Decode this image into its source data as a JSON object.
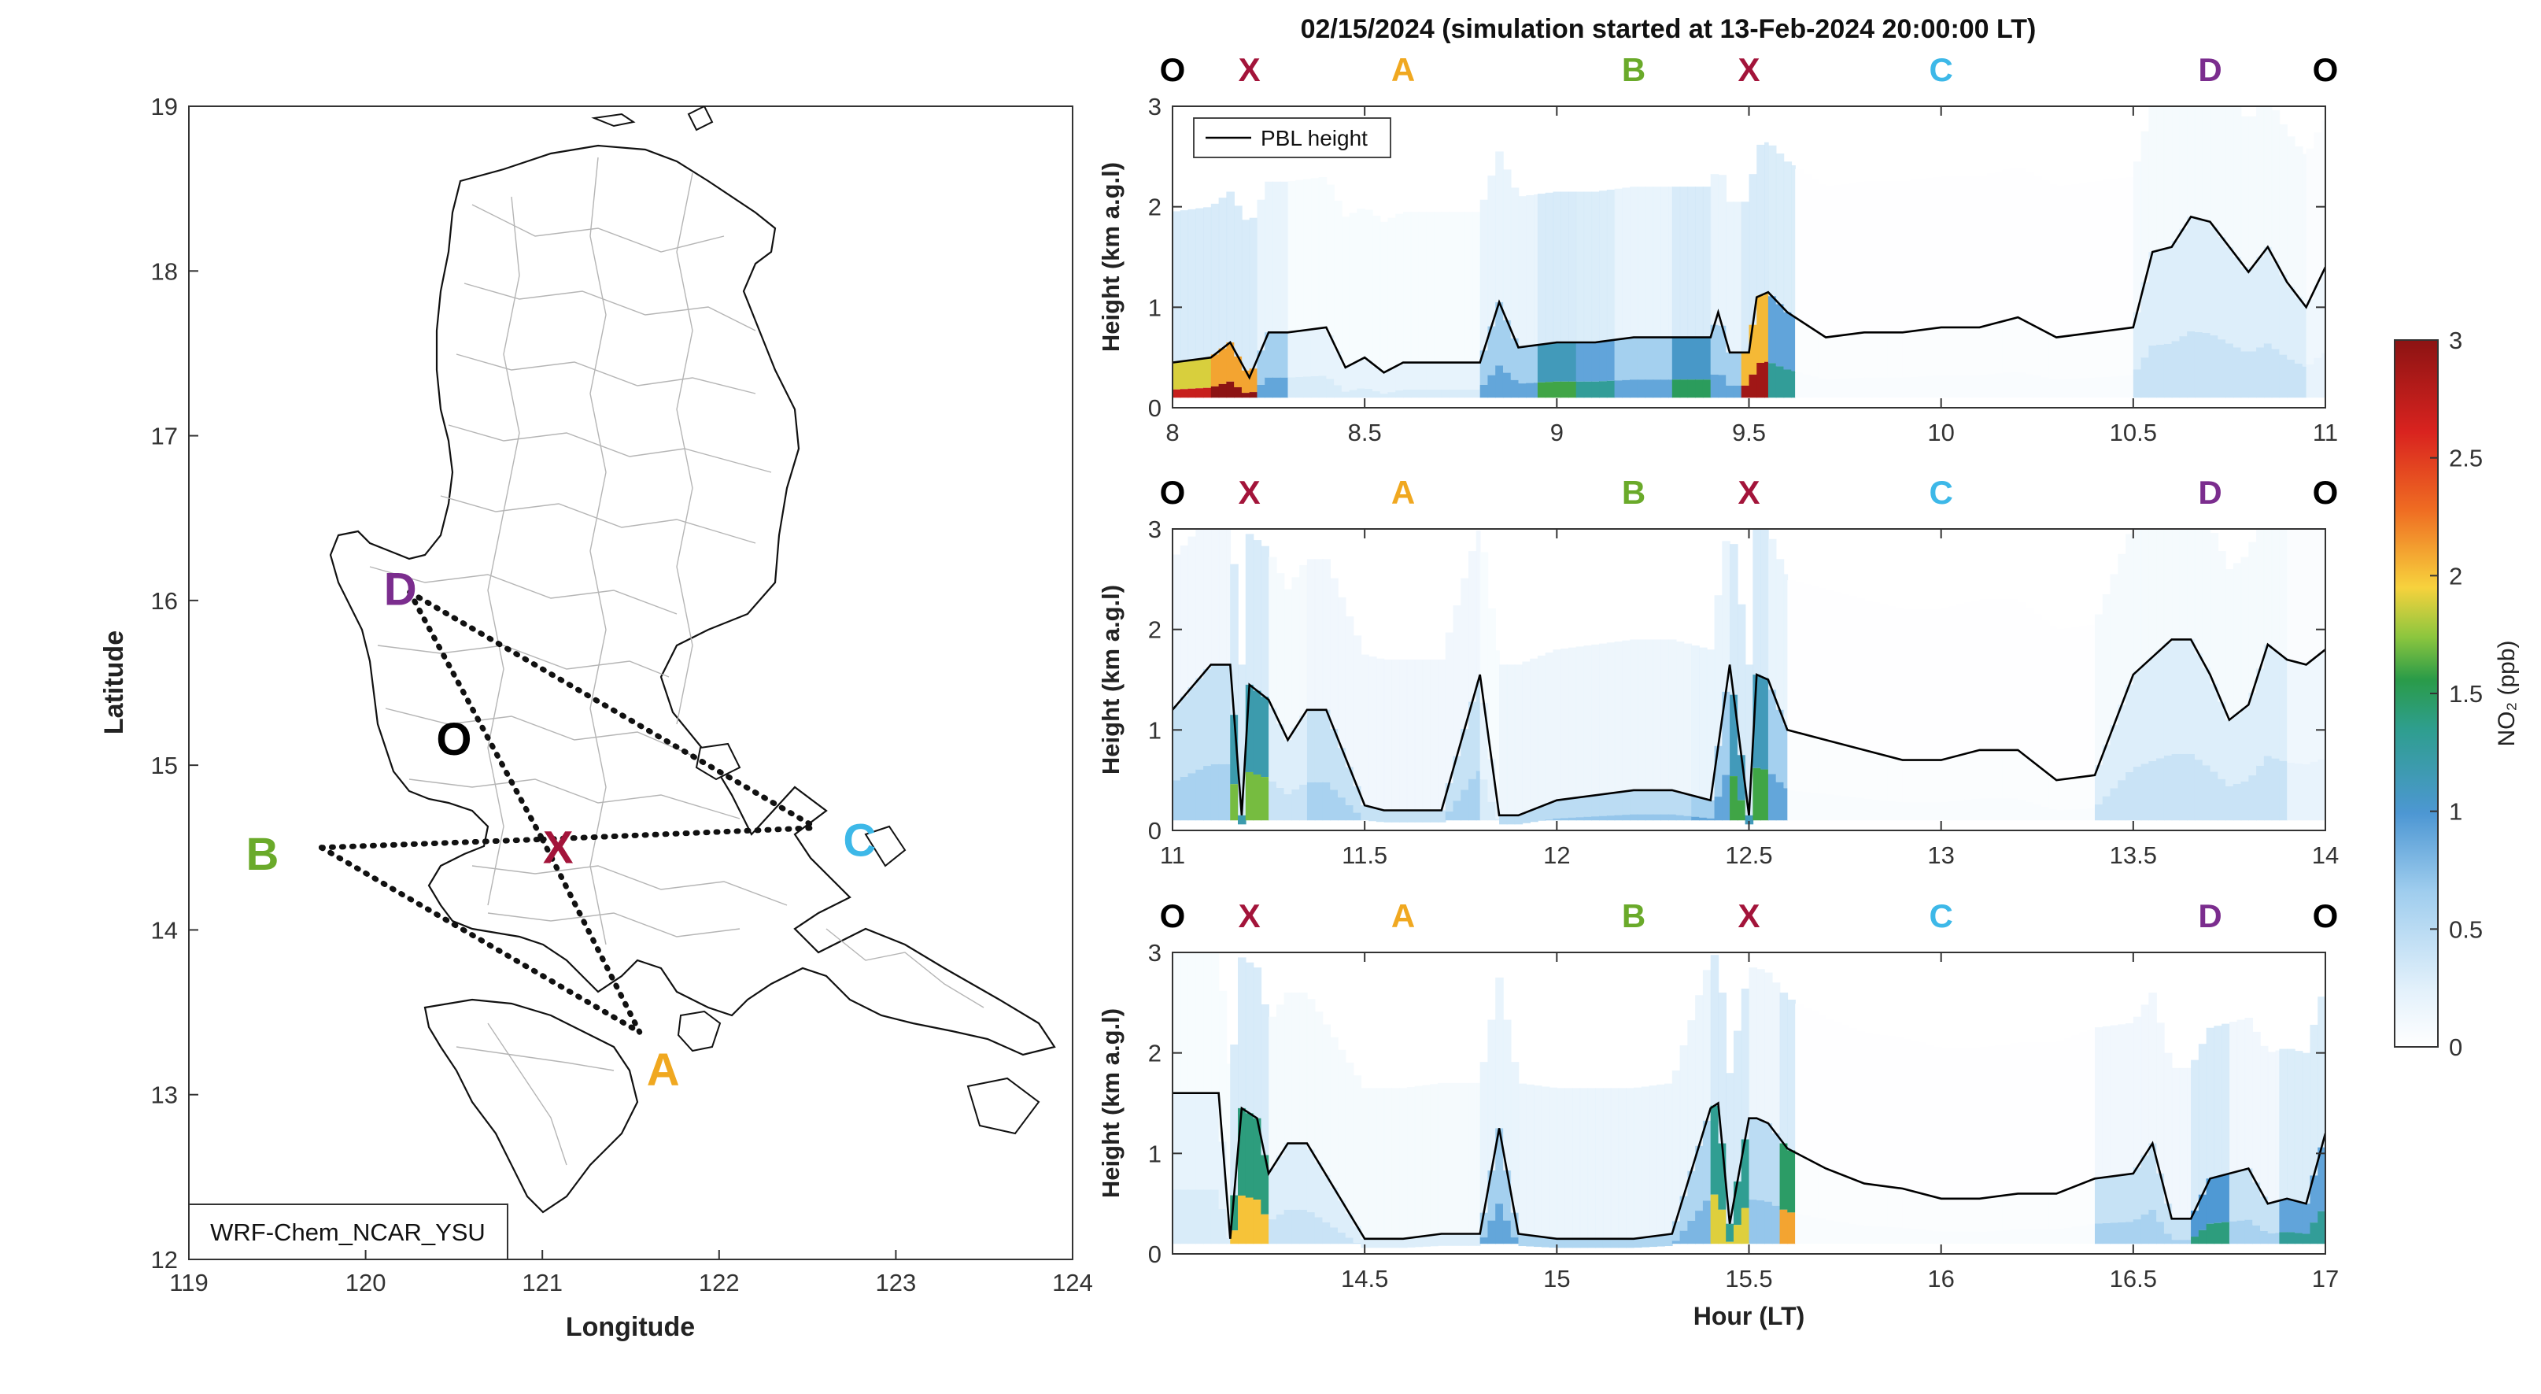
{
  "figure_title": "02/15/2024 (simulation started at 13-Feb-2024 20:00:00 LT)",
  "colors": {
    "O": "#000000",
    "X": "#a3143a",
    "A": "#f0a820",
    "B": "#6aaa2a",
    "C": "#3db8e8",
    "D": "#7b2d8e",
    "pbl": "#000000"
  },
  "map": {
    "xlabel": "Longitude",
    "ylabel": "Latitude",
    "xlim": [
      119,
      124
    ],
    "ylim": [
      12,
      19
    ],
    "xticks": [
      "119",
      "120",
      "121",
      "122",
      "123",
      "124"
    ],
    "yticks": [
      "12",
      "13",
      "14",
      "15",
      "16",
      "17",
      "18",
      "19"
    ],
    "model_label": "WRF-Chem_NCAR_YSU",
    "sites": [
      {
        "id": "D",
        "lon": 120.25,
        "lat": 16.05
      },
      {
        "id": "O",
        "lon": 120.5,
        "lat": 15.15
      },
      {
        "id": "X",
        "lon": 121.0,
        "lat": 14.55
      },
      {
        "id": "B",
        "lon": 119.75,
        "lat": 14.5
      },
      {
        "id": "C",
        "lon": 122.55,
        "lat": 14.62
      },
      {
        "id": "A",
        "lon": 121.55,
        "lat": 13.38
      }
    ],
    "path": [
      [
        "D",
        "C"
      ],
      [
        "D",
        "X"
      ],
      [
        "B",
        "X"
      ],
      [
        "B",
        "A"
      ],
      [
        "X",
        "A"
      ],
      [
        "X",
        "C"
      ]
    ]
  },
  "chart_data": [
    {
      "type": "heatmap",
      "xlabel": "",
      "ylabel": "Height (km a.g.l)",
      "xlim": [
        8,
        11
      ],
      "ylim": [
        0,
        3
      ],
      "xticks": [
        "8",
        "8.5",
        "9",
        "9.5",
        "10",
        "10.5",
        "11"
      ],
      "yticks": [
        "0",
        "1",
        "2",
        "3"
      ],
      "legend": {
        "entry": "PBL height",
        "placement": "top-left"
      },
      "site_labels": [
        {
          "id": "O",
          "hour": 8.0
        },
        {
          "id": "X",
          "hour": 8.2
        },
        {
          "id": "A",
          "hour": 8.6
        },
        {
          "id": "B",
          "hour": 9.2
        },
        {
          "id": "X",
          "hour": 9.5
        },
        {
          "id": "C",
          "hour": 10.0
        },
        {
          "id": "D",
          "hour": 10.7
        },
        {
          "id": "O",
          "hour": 11.0
        }
      ],
      "pbl_height": {
        "x": [
          8.0,
          8.1,
          8.15,
          8.2,
          8.25,
          8.3,
          8.4,
          8.45,
          8.5,
          8.55,
          8.6,
          8.8,
          8.85,
          8.9,
          9.0,
          9.1,
          9.2,
          9.3,
          9.4,
          9.42,
          9.45,
          9.5,
          9.52,
          9.55,
          9.6,
          9.7,
          9.8,
          9.9,
          10.0,
          10.1,
          10.2,
          10.3,
          10.4,
          10.5,
          10.55,
          10.6,
          10.65,
          10.7,
          10.75,
          10.8,
          10.85,
          10.9,
          10.95,
          11.0
        ],
        "y": [
          0.45,
          0.5,
          0.65,
          0.3,
          0.75,
          0.75,
          0.8,
          0.4,
          0.5,
          0.35,
          0.45,
          0.45,
          1.05,
          0.6,
          0.65,
          0.65,
          0.7,
          0.7,
          0.7,
          0.95,
          0.55,
          0.55,
          1.1,
          1.15,
          0.95,
          0.7,
          0.75,
          0.75,
          0.8,
          0.8,
          0.9,
          0.7,
          0.75,
          0.8,
          1.55,
          1.6,
          1.9,
          1.85,
          1.6,
          1.35,
          1.6,
          1.25,
          1.0,
          1.4
        ]
      },
      "no2_ppb_columns": [
        {
          "x0": 8.0,
          "x1": 8.1,
          "v": 2.7
        },
        {
          "x0": 8.1,
          "x1": 8.22,
          "v": 3.0
        },
        {
          "x0": 8.22,
          "x1": 8.3,
          "v": 0.9
        },
        {
          "x0": 8.3,
          "x1": 8.8,
          "v": 0.3
        },
        {
          "x0": 8.8,
          "x1": 8.95,
          "v": 0.9
        },
        {
          "x0": 8.95,
          "x1": 9.05,
          "v": 1.6
        },
        {
          "x0": 9.05,
          "x1": 9.15,
          "v": 1.3
        },
        {
          "x0": 9.15,
          "x1": 9.3,
          "v": 0.9
        },
        {
          "x0": 9.3,
          "x1": 9.4,
          "v": 1.5
        },
        {
          "x0": 9.4,
          "x1": 9.48,
          "v": 0.9
        },
        {
          "x0": 9.48,
          "x1": 9.55,
          "v": 2.9
        },
        {
          "x0": 9.55,
          "x1": 9.62,
          "v": 1.3
        },
        {
          "x0": 9.62,
          "x1": 10.5,
          "v": 0.05
        },
        {
          "x0": 10.5,
          "x1": 10.95,
          "v": 0.4
        },
        {
          "x0": 10.95,
          "x1": 11.0,
          "v": 0.2
        }
      ]
    },
    {
      "type": "heatmap",
      "xlabel": "",
      "ylabel": "Height (km a.g.l)",
      "xlim": [
        11,
        14
      ],
      "ylim": [
        0,
        3
      ],
      "xticks": [
        "11",
        "11.5",
        "12",
        "12.5",
        "13",
        "13.5",
        "14"
      ],
      "yticks": [
        "0",
        "1",
        "2",
        "3"
      ],
      "site_labels": [
        {
          "id": "O",
          "hour": 11.0
        },
        {
          "id": "X",
          "hour": 11.2
        },
        {
          "id": "A",
          "hour": 11.6
        },
        {
          "id": "B",
          "hour": 12.2
        },
        {
          "id": "X",
          "hour": 12.5
        },
        {
          "id": "C",
          "hour": 13.0
        },
        {
          "id": "D",
          "hour": 13.7
        },
        {
          "id": "O",
          "hour": 14.0
        }
      ],
      "pbl_height": {
        "x": [
          11.0,
          11.1,
          11.15,
          11.18,
          11.2,
          11.25,
          11.3,
          11.35,
          11.4,
          11.5,
          11.55,
          11.7,
          11.8,
          11.85,
          11.9,
          12.0,
          12.2,
          12.3,
          12.4,
          12.45,
          12.5,
          12.52,
          12.55,
          12.6,
          12.7,
          12.8,
          12.9,
          13.0,
          13.1,
          13.2,
          13.3,
          13.4,
          13.5,
          13.6,
          13.65,
          13.7,
          13.75,
          13.8,
          13.85,
          13.9,
          13.95,
          14.0
        ],
        "y": [
          1.2,
          1.65,
          1.65,
          0.15,
          1.45,
          1.3,
          0.9,
          1.2,
          1.2,
          0.25,
          0.2,
          0.2,
          1.55,
          0.15,
          0.15,
          0.3,
          0.4,
          0.4,
          0.3,
          1.65,
          0.15,
          1.55,
          1.5,
          1.0,
          0.9,
          0.8,
          0.7,
          0.7,
          0.8,
          0.8,
          0.5,
          0.55,
          1.55,
          1.9,
          1.9,
          1.55,
          1.1,
          1.25,
          1.85,
          1.7,
          1.65,
          1.8
        ]
      },
      "no2_ppb_columns": [
        {
          "x0": 11.0,
          "x1": 11.15,
          "v": 0.6
        },
        {
          "x0": 11.15,
          "x1": 11.25,
          "v": 1.7
        },
        {
          "x0": 11.25,
          "x1": 11.35,
          "v": 0.4
        },
        {
          "x0": 11.35,
          "x1": 11.8,
          "v": 0.6
        },
        {
          "x0": 11.8,
          "x1": 11.85,
          "v": 0.3
        },
        {
          "x0": 11.85,
          "x1": 12.35,
          "v": 0.7
        },
        {
          "x0": 12.35,
          "x1": 12.45,
          "v": 0.9
        },
        {
          "x0": 12.45,
          "x1": 12.55,
          "v": 1.6
        },
        {
          "x0": 12.55,
          "x1": 12.6,
          "v": 0.9
        },
        {
          "x0": 12.6,
          "x1": 13.4,
          "v": 0.05
        },
        {
          "x0": 13.4,
          "x1": 13.9,
          "v": 0.4
        },
        {
          "x0": 13.9,
          "x1": 14.0,
          "v": 0.2
        }
      ]
    },
    {
      "type": "heatmap",
      "xlabel": "Hour (LT)",
      "ylabel": "Height (km a.g.l)",
      "xlim": [
        14,
        17
      ],
      "ylim": [
        0,
        3
      ],
      "xticks": [
        "14.5",
        "15",
        "15.5",
        "16",
        "16.5",
        "17"
      ],
      "yticks": [
        "0",
        "1",
        "2",
        "3"
      ],
      "site_labels": [
        {
          "id": "O",
          "hour": 14.0
        },
        {
          "id": "X",
          "hour": 14.2
        },
        {
          "id": "A",
          "hour": 14.6
        },
        {
          "id": "B",
          "hour": 15.2
        },
        {
          "id": "X",
          "hour": 15.5
        },
        {
          "id": "C",
          "hour": 16.0
        },
        {
          "id": "D",
          "hour": 16.7
        },
        {
          "id": "O",
          "hour": 17.0
        }
      ],
      "pbl_height": {
        "x": [
          14.0,
          14.12,
          14.15,
          14.18,
          14.22,
          14.25,
          14.3,
          14.35,
          14.5,
          14.6,
          14.7,
          14.8,
          14.85,
          14.9,
          15.0,
          15.1,
          15.2,
          15.3,
          15.4,
          15.42,
          15.45,
          15.5,
          15.52,
          15.55,
          15.6,
          15.7,
          15.8,
          15.9,
          16.0,
          16.1,
          16.2,
          16.3,
          16.4,
          16.5,
          16.55,
          16.6,
          16.65,
          16.7,
          16.8,
          16.85,
          16.9,
          16.95,
          17.0
        ],
        "y": [
          1.6,
          1.6,
          0.15,
          1.45,
          1.35,
          0.8,
          1.1,
          1.1,
          0.15,
          0.15,
          0.2,
          0.2,
          1.25,
          0.2,
          0.15,
          0.15,
          0.15,
          0.2,
          1.45,
          1.5,
          0.3,
          1.35,
          1.35,
          1.3,
          1.05,
          0.85,
          0.7,
          0.65,
          0.55,
          0.55,
          0.6,
          0.6,
          0.75,
          0.8,
          1.1,
          0.35,
          0.35,
          0.75,
          0.85,
          0.5,
          0.55,
          0.5,
          1.2
        ]
      },
      "no2_ppb_columns": [
        {
          "x0": 14.0,
          "x1": 14.15,
          "v": 0.3
        },
        {
          "x0": 14.15,
          "x1": 14.25,
          "v": 2.0
        },
        {
          "x0": 14.25,
          "x1": 14.8,
          "v": 0.4
        },
        {
          "x0": 14.8,
          "x1": 14.9,
          "v": 0.9
        },
        {
          "x0": 14.9,
          "x1": 15.4,
          "v": 0.8
        },
        {
          "x0": 15.4,
          "x1": 15.5,
          "v": 1.9
        },
        {
          "x0": 15.5,
          "x1": 15.58,
          "v": 0.7
        },
        {
          "x0": 15.58,
          "x1": 15.62,
          "v": 2.1
        },
        {
          "x0": 15.62,
          "x1": 16.4,
          "v": 0.05
        },
        {
          "x0": 16.4,
          "x1": 16.65,
          "v": 0.6
        },
        {
          "x0": 16.65,
          "x1": 16.75,
          "v": 1.4
        },
        {
          "x0": 16.75,
          "x1": 16.88,
          "v": 0.6
        },
        {
          "x0": 16.88,
          "x1": 17.0,
          "v": 1.3
        }
      ]
    }
  ],
  "colorbar": {
    "label": "NO₂ (ppb)",
    "min": 0,
    "max": 3,
    "ticks": [
      "0",
      "0.5",
      "1",
      "1.5",
      "2",
      "2.5",
      "3"
    ],
    "stops": [
      "#ffffff",
      "#c6e2f6",
      "#4d97d3",
      "#2a9b48",
      "#8cc63e",
      "#f7d23d",
      "#ef6c22",
      "#d9231f",
      "#8c1313"
    ]
  }
}
